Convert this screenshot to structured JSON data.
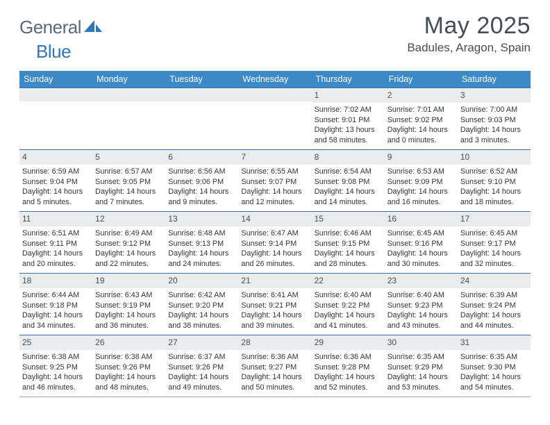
{
  "branding": {
    "word1": "General",
    "word2": "Blue",
    "text_color": "#5a6a78",
    "accent_color": "#2f77b6"
  },
  "title": {
    "month": "May 2025",
    "location": "Badules, Aragon, Spain"
  },
  "colors": {
    "header_bg": "#3b89c7",
    "header_text": "#ffffff",
    "row_border": "#3b6f9e",
    "daynum_bg": "#e9ebec",
    "body_text": "#303438"
  },
  "day_labels": [
    "Sunday",
    "Monday",
    "Tuesday",
    "Wednesday",
    "Thursday",
    "Friday",
    "Saturday"
  ],
  "weeks": [
    [
      {
        "n": "",
        "sunrise": "",
        "sunset": "",
        "daylight": ""
      },
      {
        "n": "",
        "sunrise": "",
        "sunset": "",
        "daylight": ""
      },
      {
        "n": "",
        "sunrise": "",
        "sunset": "",
        "daylight": ""
      },
      {
        "n": "",
        "sunrise": "",
        "sunset": "",
        "daylight": ""
      },
      {
        "n": "1",
        "sunrise": "Sunrise: 7:02 AM",
        "sunset": "Sunset: 9:01 PM",
        "daylight": "Daylight: 13 hours and 58 minutes."
      },
      {
        "n": "2",
        "sunrise": "Sunrise: 7:01 AM",
        "sunset": "Sunset: 9:02 PM",
        "daylight": "Daylight: 14 hours and 0 minutes."
      },
      {
        "n": "3",
        "sunrise": "Sunrise: 7:00 AM",
        "sunset": "Sunset: 9:03 PM",
        "daylight": "Daylight: 14 hours and 3 minutes."
      }
    ],
    [
      {
        "n": "4",
        "sunrise": "Sunrise: 6:59 AM",
        "sunset": "Sunset: 9:04 PM",
        "daylight": "Daylight: 14 hours and 5 minutes."
      },
      {
        "n": "5",
        "sunrise": "Sunrise: 6:57 AM",
        "sunset": "Sunset: 9:05 PM",
        "daylight": "Daylight: 14 hours and 7 minutes."
      },
      {
        "n": "6",
        "sunrise": "Sunrise: 6:56 AM",
        "sunset": "Sunset: 9:06 PM",
        "daylight": "Daylight: 14 hours and 9 minutes."
      },
      {
        "n": "7",
        "sunrise": "Sunrise: 6:55 AM",
        "sunset": "Sunset: 9:07 PM",
        "daylight": "Daylight: 14 hours and 12 minutes."
      },
      {
        "n": "8",
        "sunrise": "Sunrise: 6:54 AM",
        "sunset": "Sunset: 9:08 PM",
        "daylight": "Daylight: 14 hours and 14 minutes."
      },
      {
        "n": "9",
        "sunrise": "Sunrise: 6:53 AM",
        "sunset": "Sunset: 9:09 PM",
        "daylight": "Daylight: 14 hours and 16 minutes."
      },
      {
        "n": "10",
        "sunrise": "Sunrise: 6:52 AM",
        "sunset": "Sunset: 9:10 PM",
        "daylight": "Daylight: 14 hours and 18 minutes."
      }
    ],
    [
      {
        "n": "11",
        "sunrise": "Sunrise: 6:51 AM",
        "sunset": "Sunset: 9:11 PM",
        "daylight": "Daylight: 14 hours and 20 minutes."
      },
      {
        "n": "12",
        "sunrise": "Sunrise: 6:49 AM",
        "sunset": "Sunset: 9:12 PM",
        "daylight": "Daylight: 14 hours and 22 minutes."
      },
      {
        "n": "13",
        "sunrise": "Sunrise: 6:48 AM",
        "sunset": "Sunset: 9:13 PM",
        "daylight": "Daylight: 14 hours and 24 minutes."
      },
      {
        "n": "14",
        "sunrise": "Sunrise: 6:47 AM",
        "sunset": "Sunset: 9:14 PM",
        "daylight": "Daylight: 14 hours and 26 minutes."
      },
      {
        "n": "15",
        "sunrise": "Sunrise: 6:46 AM",
        "sunset": "Sunset: 9:15 PM",
        "daylight": "Daylight: 14 hours and 28 minutes."
      },
      {
        "n": "16",
        "sunrise": "Sunrise: 6:45 AM",
        "sunset": "Sunset: 9:16 PM",
        "daylight": "Daylight: 14 hours and 30 minutes."
      },
      {
        "n": "17",
        "sunrise": "Sunrise: 6:45 AM",
        "sunset": "Sunset: 9:17 PM",
        "daylight": "Daylight: 14 hours and 32 minutes."
      }
    ],
    [
      {
        "n": "18",
        "sunrise": "Sunrise: 6:44 AM",
        "sunset": "Sunset: 9:18 PM",
        "daylight": "Daylight: 14 hours and 34 minutes."
      },
      {
        "n": "19",
        "sunrise": "Sunrise: 6:43 AM",
        "sunset": "Sunset: 9:19 PM",
        "daylight": "Daylight: 14 hours and 36 minutes."
      },
      {
        "n": "20",
        "sunrise": "Sunrise: 6:42 AM",
        "sunset": "Sunset: 9:20 PM",
        "daylight": "Daylight: 14 hours and 38 minutes."
      },
      {
        "n": "21",
        "sunrise": "Sunrise: 6:41 AM",
        "sunset": "Sunset: 9:21 PM",
        "daylight": "Daylight: 14 hours and 39 minutes."
      },
      {
        "n": "22",
        "sunrise": "Sunrise: 6:40 AM",
        "sunset": "Sunset: 9:22 PM",
        "daylight": "Daylight: 14 hours and 41 minutes."
      },
      {
        "n": "23",
        "sunrise": "Sunrise: 6:40 AM",
        "sunset": "Sunset: 9:23 PM",
        "daylight": "Daylight: 14 hours and 43 minutes."
      },
      {
        "n": "24",
        "sunrise": "Sunrise: 6:39 AM",
        "sunset": "Sunset: 9:24 PM",
        "daylight": "Daylight: 14 hours and 44 minutes."
      }
    ],
    [
      {
        "n": "25",
        "sunrise": "Sunrise: 6:38 AM",
        "sunset": "Sunset: 9:25 PM",
        "daylight": "Daylight: 14 hours and 46 minutes."
      },
      {
        "n": "26",
        "sunrise": "Sunrise: 6:38 AM",
        "sunset": "Sunset: 9:26 PM",
        "daylight": "Daylight: 14 hours and 48 minutes."
      },
      {
        "n": "27",
        "sunrise": "Sunrise: 6:37 AM",
        "sunset": "Sunset: 9:26 PM",
        "daylight": "Daylight: 14 hours and 49 minutes."
      },
      {
        "n": "28",
        "sunrise": "Sunrise: 6:36 AM",
        "sunset": "Sunset: 9:27 PM",
        "daylight": "Daylight: 14 hours and 50 minutes."
      },
      {
        "n": "29",
        "sunrise": "Sunrise: 6:36 AM",
        "sunset": "Sunset: 9:28 PM",
        "daylight": "Daylight: 14 hours and 52 minutes."
      },
      {
        "n": "30",
        "sunrise": "Sunrise: 6:35 AM",
        "sunset": "Sunset: 9:29 PM",
        "daylight": "Daylight: 14 hours and 53 minutes."
      },
      {
        "n": "31",
        "sunrise": "Sunrise: 6:35 AM",
        "sunset": "Sunset: 9:30 PM",
        "daylight": "Daylight: 14 hours and 54 minutes."
      }
    ]
  ]
}
